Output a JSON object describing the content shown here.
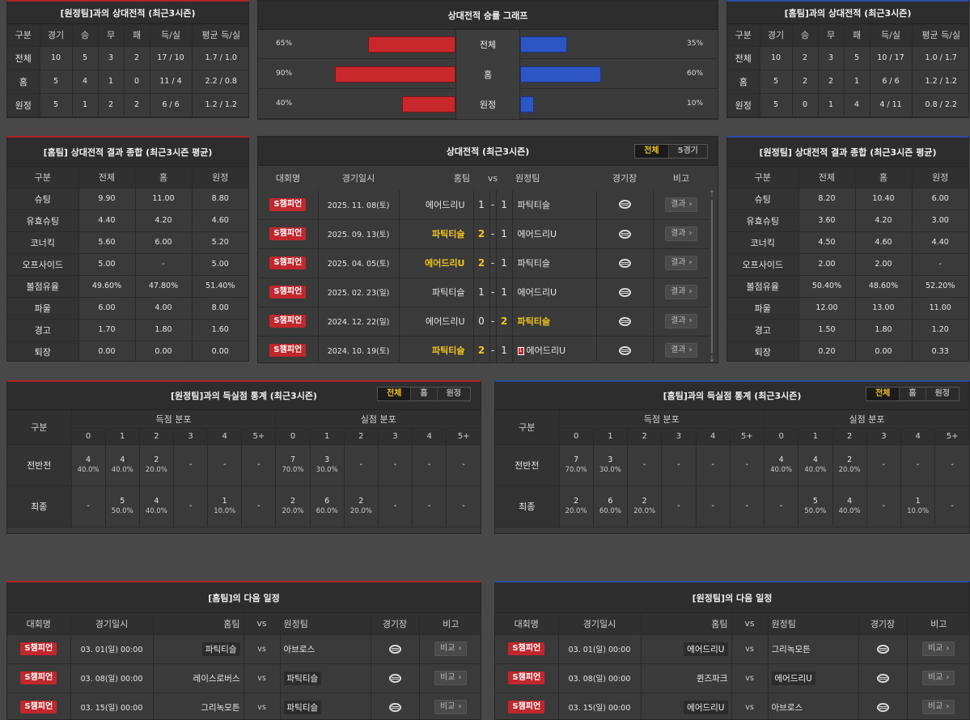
{
  "h2h_away": {
    "title": "[원정팀]과의 상대전적 (최근3시즌)",
    "headers": [
      "구분",
      "경기",
      "승",
      "무",
      "패",
      "득/실",
      "평균 득/실"
    ],
    "rows": [
      [
        "전체",
        "10",
        "5",
        "3",
        "2",
        "17 / 10",
        "1.7 / 1.0"
      ],
      [
        "홈",
        "5",
        "4",
        "1",
        "0",
        "11 / 4",
        "2.2 / 0.8"
      ],
      [
        "원정",
        "5",
        "1",
        "2",
        "2",
        "6 / 6",
        "1.2 / 1.2"
      ]
    ]
  },
  "graph": {
    "title": "상대전적 승률 그래프",
    "rows": [
      {
        "label": "전체",
        "left_pct": "65%",
        "right_pct": "35%",
        "left": 0.65,
        "right": 0.35
      },
      {
        "label": "홈",
        "left_pct": "90%",
        "right_pct": "60%",
        "left": 0.9,
        "right": 0.6
      },
      {
        "label": "원정",
        "left_pct": "40%",
        "right_pct": "10%",
        "left": 0.4,
        "right": 0.1
      }
    ]
  },
  "h2h_home": {
    "title": "[홈팀]과의 상대전적 (최근3시즌)",
    "headers": [
      "구분",
      "경기",
      "승",
      "무",
      "패",
      "득/실",
      "평균 득/실"
    ],
    "rows": [
      [
        "전체",
        "10",
        "2",
        "3",
        "5",
        "10 / 17",
        "1.0 / 1.7"
      ],
      [
        "홈",
        "5",
        "2",
        "2",
        "1",
        "6 / 6",
        "1.2 / 1.2"
      ],
      [
        "원정",
        "5",
        "0",
        "1",
        "4",
        "4 / 11",
        "0.8 / 2.2"
      ]
    ]
  },
  "summary_home": {
    "title": "[홈팀] 상대전적 결과 종합 (최근3시즌 평균)",
    "headers": [
      "구분",
      "전체",
      "홈",
      "원정"
    ],
    "rows": [
      [
        "슈팅",
        "9.90",
        "11.00",
        "8.80"
      ],
      [
        "유효슈팅",
        "4.40",
        "4.20",
        "4.60"
      ],
      [
        "코너킥",
        "5.60",
        "6.00",
        "5.20"
      ],
      [
        "오프사이드",
        "5.00",
        "-",
        "5.00"
      ],
      [
        "볼점유율",
        "49.60%",
        "47.80%",
        "51.40%"
      ],
      [
        "파울",
        "6.00",
        "4.00",
        "8.00"
      ],
      [
        "경고",
        "1.70",
        "1.80",
        "1.60"
      ],
      [
        "퇴장",
        "0.00",
        "0.00",
        "0.00"
      ]
    ]
  },
  "recent": {
    "title": "상대전적 (최근3시즌)",
    "toggle": [
      "전체",
      "5경기"
    ],
    "headers": {
      "league": "대회명",
      "date": "경기일시",
      "home": "홈팀",
      "vs": "vs",
      "away": "원정팀",
      "venue": "경기장",
      "note": "비고"
    },
    "rows": [
      {
        "league": "S챔피언",
        "date": "2025. 11. 08(토)",
        "home": "에어드리U",
        "hs": "1",
        "sep": "-",
        "as": "1",
        "away": "파틱티슬",
        "win": "none",
        "btn": "결과"
      },
      {
        "league": "S챔피언",
        "date": "2025. 09. 13(토)",
        "home": "파틱티슬",
        "hs": "2",
        "sep": "-",
        "as": "1",
        "away": "에어드리U",
        "win": "home",
        "btn": "결과"
      },
      {
        "league": "S챔피언",
        "date": "2025. 04. 05(토)",
        "home": "에어드리U",
        "hs": "2",
        "sep": "-",
        "as": "1",
        "away": "파틱티슬",
        "win": "home",
        "btn": "결과"
      },
      {
        "league": "S챔피언",
        "date": "2025. 02. 23(일)",
        "home": "파틱티슬",
        "hs": "1",
        "sep": "-",
        "as": "1",
        "away": "에어드리U",
        "win": "none",
        "btn": "결과"
      },
      {
        "league": "S챔피언",
        "date": "2024. 12. 22(일)",
        "home": "에어드리U",
        "hs": "0",
        "sep": "-",
        "as": "2",
        "away": "파틱티슬",
        "win": "away",
        "btn": "결과"
      },
      {
        "league": "S챔피언",
        "date": "2024. 10. 19(토)",
        "home": "파틱티슬",
        "hs": "2",
        "sep": "-",
        "as": "1",
        "away": "에어드리U",
        "win": "home",
        "card": "1",
        "btn": "결과"
      }
    ]
  },
  "summary_away": {
    "title": "[원정팀] 상대전적 결과 종합 (최근3시즌 평균)",
    "headers": [
      "구분",
      "전체",
      "홈",
      "원정"
    ],
    "rows": [
      [
        "슈팅",
        "8.20",
        "10.40",
        "6.00"
      ],
      [
        "유효슈팅",
        "3.60",
        "4.20",
        "3.00"
      ],
      [
        "코너킥",
        "4.50",
        "4.60",
        "4.40"
      ],
      [
        "오프사이드",
        "2.00",
        "2.00",
        "-"
      ],
      [
        "볼점유율",
        "50.40%",
        "48.60%",
        "52.20%"
      ],
      [
        "파울",
        "12.00",
        "13.00",
        "11.00"
      ],
      [
        "경고",
        "1.50",
        "1.80",
        "1.20"
      ],
      [
        "퇴장",
        "0.20",
        "0.00",
        "0.33"
      ]
    ]
  },
  "goals_away": {
    "title": "[원정팀]과의 득실점 통계 (최근3시즌)",
    "toggle": [
      "전체",
      "홈",
      "원정"
    ],
    "label_col": "구분",
    "group1": "득점 분포",
    "group2": "실점 분포",
    "cols": [
      "0",
      "1",
      "2",
      "3",
      "4",
      "5+"
    ],
    "rows": [
      {
        "label": "전반전",
        "cells": [
          [
            "4",
            "40.0%"
          ],
          [
            "4",
            "40.0%"
          ],
          [
            "2",
            "20.0%"
          ],
          [
            "-",
            ""
          ],
          [
            "-",
            ""
          ],
          [
            "-",
            ""
          ],
          [
            "7",
            "70.0%"
          ],
          [
            "3",
            "30.0%"
          ],
          [
            "-",
            ""
          ],
          [
            "-",
            ""
          ],
          [
            "-",
            ""
          ],
          [
            "-",
            ""
          ]
        ]
      },
      {
        "label": "최종",
        "cells": [
          [
            "-",
            ""
          ],
          [
            "5",
            "50.0%"
          ],
          [
            "4",
            "40.0%"
          ],
          [
            "-",
            ""
          ],
          [
            "1",
            "10.0%"
          ],
          [
            "-",
            ""
          ],
          [
            "2",
            "20.0%"
          ],
          [
            "6",
            "60.0%"
          ],
          [
            "2",
            "20.0%"
          ],
          [
            "-",
            ""
          ],
          [
            "-",
            ""
          ],
          [
            "-",
            ""
          ]
        ]
      }
    ]
  },
  "goals_home": {
    "title": "[홈팀]과의 득실점 통계 (최근3시즌)",
    "toggle": [
      "전체",
      "홈",
      "원정"
    ],
    "label_col": "구분",
    "group1": "득점 분포",
    "group2": "실점 분포",
    "cols": [
      "0",
      "1",
      "2",
      "3",
      "4",
      "5+"
    ],
    "rows": [
      {
        "label": "전반전",
        "cells": [
          [
            "7",
            "70.0%"
          ],
          [
            "3",
            "30.0%"
          ],
          [
            "-",
            ""
          ],
          [
            "-",
            ""
          ],
          [
            "-",
            ""
          ],
          [
            "-",
            ""
          ],
          [
            "4",
            "40.0%"
          ],
          [
            "4",
            "40.0%"
          ],
          [
            "2",
            "20.0%"
          ],
          [
            "-",
            ""
          ],
          [
            "-",
            ""
          ],
          [
            "-",
            ""
          ]
        ]
      },
      {
        "label": "최종",
        "cells": [
          [
            "2",
            "20.0%"
          ],
          [
            "6",
            "60.0%"
          ],
          [
            "2",
            "20.0%"
          ],
          [
            "-",
            ""
          ],
          [
            "-",
            ""
          ],
          [
            "-",
            ""
          ],
          [
            "-",
            ""
          ],
          [
            "5",
            "50.0%"
          ],
          [
            "4",
            "40.0%"
          ],
          [
            "-",
            ""
          ],
          [
            "1",
            "10.0%"
          ],
          [
            "-",
            ""
          ]
        ]
      }
    ]
  },
  "next_home": {
    "title": "[홈팀]의 다음 일정",
    "headers": {
      "league": "대회명",
      "date": "경기일시",
      "home": "홈팀",
      "vs": "vs",
      "away": "원정팀",
      "venue": "경기장",
      "note": "비고"
    },
    "rows": [
      {
        "league": "S챔피언",
        "date": "03. 01(일) 00:00",
        "home": "파틱티슬",
        "vs": "vs",
        "away": "아브로스",
        "hl": "home",
        "btn": "비교"
      },
      {
        "league": "S챔피언",
        "date": "03. 08(일) 00:00",
        "home": "레이스로버스",
        "vs": "vs",
        "away": "파틱티슬",
        "hl": "away",
        "btn": "비교"
      },
      {
        "league": "S챔피언",
        "date": "03. 15(일) 00:00",
        "home": "그리녹모튼",
        "vs": "vs",
        "away": "파틱티슬",
        "hl": "away",
        "btn": "비교"
      }
    ]
  },
  "next_away": {
    "title": "[원정팀]의 다음 일정",
    "headers": {
      "league": "대회명",
      "date": "경기일시",
      "home": "홈팀",
      "vs": "vs",
      "away": "원정팀",
      "venue": "경기장",
      "note": "비고"
    },
    "rows": [
      {
        "league": "S챔피언",
        "date": "03. 01(일) 00:00",
        "home": "에어드리U",
        "vs": "vs",
        "away": "그리녹모튼",
        "hl": "home",
        "btn": "비교"
      },
      {
        "league": "S챔피언",
        "date": "03. 08(일) 00:00",
        "home": "퀸즈파크",
        "vs": "vs",
        "away": "에어드리U",
        "hl": "away",
        "btn": "비교"
      },
      {
        "league": "S챔피언",
        "date": "03. 15(일) 00:00",
        "home": "에어드리U",
        "vs": "vs",
        "away": "아브로스",
        "hl": "home",
        "btn": "비교"
      }
    ]
  },
  "colors": {
    "home_red": "#c8282c",
    "away_blue": "#2d56c4",
    "accent_yellow": "#f0c419"
  }
}
